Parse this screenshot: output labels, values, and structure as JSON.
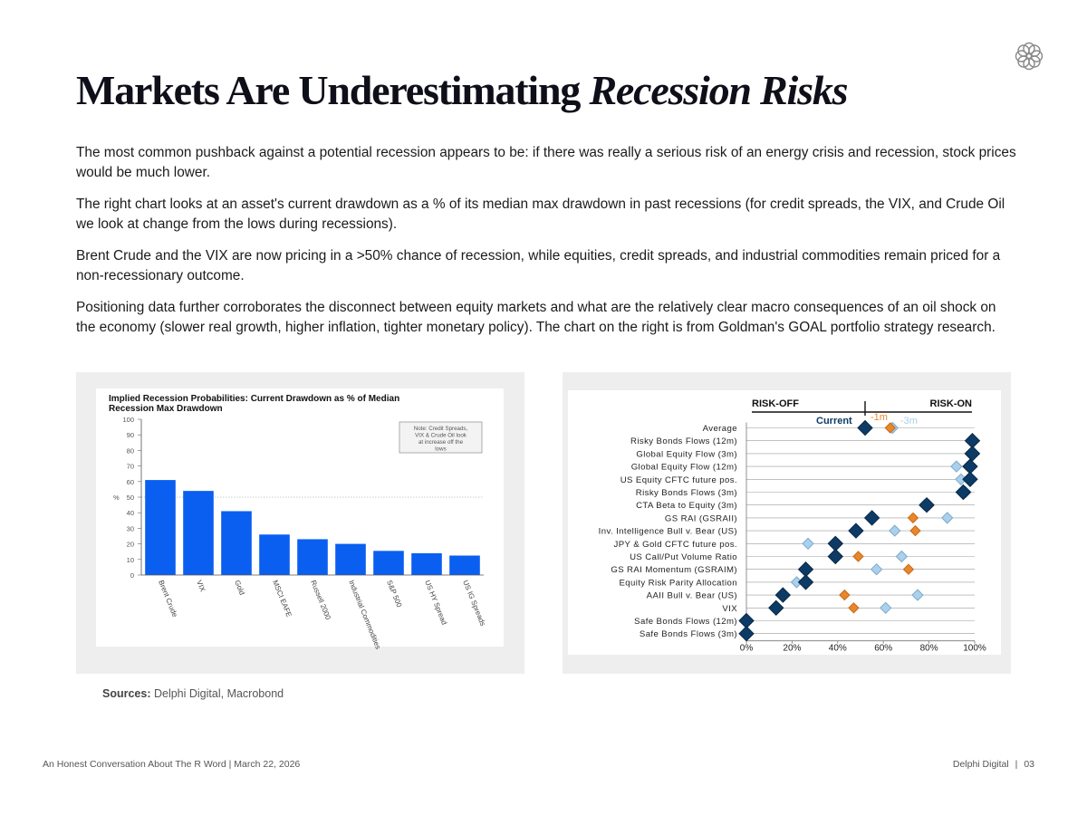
{
  "title": {
    "main": "Markets Are Underestimating ",
    "emphasis": "Recession Risks"
  },
  "paragraphs": [
    "The most common pushback against a potential recession appears to be: if there was really a serious risk of an energy crisis and recession, stock prices would be much lower.",
    "The right chart looks at an asset's current drawdown as a % of its median max drawdown in past recessions (for credit spreads, the VIX, and Crude Oil we look at change from the lows during recessions).",
    "Brent Crude and the VIX are now pricing in a >50% chance of recession, while equities, credit spreads, and industrial commodities remain priced for a non-recessionary outcome.",
    "Positioning data further corroborates the disconnect between equity markets and what are the relatively clear macro consequences of an oil shock on the economy (slower real growth, higher inflation, tighter monetary policy).  The chart on the right is from Goldman's GOAL portfolio strategy research."
  ],
  "sources": {
    "label": "Sources:",
    "text": " Delphi Digital, Macrobond"
  },
  "footer": {
    "left": "An Honest Conversation About The R Word | March 22, 2026",
    "brand": "Delphi Digital",
    "separator": "|",
    "page": "03"
  },
  "icons": {
    "logo": "delphi-flower-logo-icon"
  },
  "chart_data": [
    {
      "type": "bar",
      "title": "Implied Recession Probabilities: Current Drawdown as % of Median Recession Max Drawdown",
      "ylabel": "%",
      "ylim": [
        0,
        100
      ],
      "yticks": [
        "0",
        "10",
        "20",
        "30",
        "40",
        "50",
        "60",
        "70",
        "80",
        "90",
        "100"
      ],
      "reference_line": 50,
      "note": "Note: Credit Spreads, VIX & Crude Oil look at increase off the lows",
      "categories": [
        "Brent Crude",
        "VIX",
        "Gold",
        "MSCI EAFE",
        "Russell 2000",
        "Industrial Commodities",
        "S&P 500",
        "US HY Spread",
        "US IG Spreads"
      ],
      "values": [
        61,
        54,
        41,
        26,
        23,
        20,
        15.5,
        14,
        12.5
      ],
      "color": "#0a5ff0"
    },
    {
      "type": "scatter",
      "left_header": "RISK-OFF",
      "right_header": "RISK-ON",
      "legend": [
        {
          "name": "Current",
          "color": "#0d3b66"
        },
        {
          "name": "-1m",
          "color": "#e8862b"
        },
        {
          "name": "-3m",
          "color": "#a9d0ec"
        }
      ],
      "xlim": [
        0,
        100
      ],
      "xticks": [
        "0%",
        "20%",
        "40%",
        "60%",
        "80%",
        "100%"
      ],
      "categories": [
        "Average",
        "Risky Bonds Flows (12m)",
        "Global Equity Flow (3m)",
        "Global Equity Flow (12m)",
        "US Equity CFTC future pos.",
        "Risky Bonds Flows (3m)",
        "CTA Beta to Equity (3m)",
        "GS RAI (GSRAII)",
        "Inv. Intelligence Bull v. Bear (US)",
        "JPY & Gold CFTC future pos.",
        "US Call/Put Volume Ratio",
        "GS RAI Momentum (GSRAIM)",
        "Equity Risk Parity Allocation",
        "AAII Bull v. Bear (US)",
        "VIX",
        "Safe Bonds Flows (12m)",
        "Safe Bonds Flows (3m)"
      ],
      "series": [
        {
          "name": "-3m",
          "values": [
            64,
            99,
            98,
            92,
            94,
            96,
            78,
            88,
            65,
            27,
            68,
            57,
            22,
            75,
            61,
            0,
            0
          ]
        },
        {
          "name": "-1m",
          "values": [
            63,
            99,
            98,
            97,
            98,
            96,
            80,
            73,
            74,
            40,
            49,
            71,
            26,
            43,
            47,
            0,
            0
          ]
        },
        {
          "name": "Current",
          "values": [
            52,
            99,
            99,
            98,
            98,
            95,
            79,
            55,
            48,
            39,
            39,
            26,
            26,
            16,
            13,
            0,
            0
          ]
        }
      ]
    }
  ]
}
